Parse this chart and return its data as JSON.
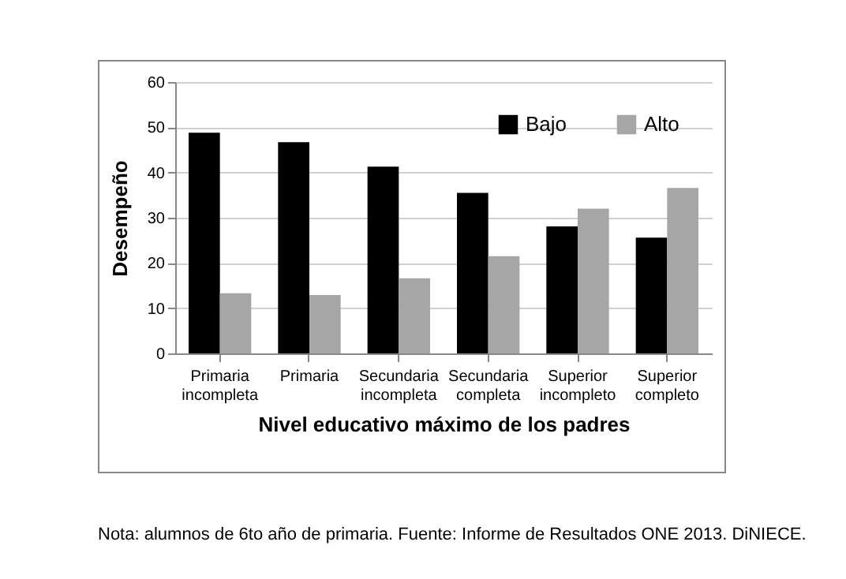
{
  "chart_data": {
    "type": "bar",
    "xlabel": "Nivel educativo  máximo de los padres",
    "ylabel": "Desempeño",
    "categories": [
      "Primaria incompleta",
      "Primaria",
      "Secundaria incompleta",
      "Secundaria completa",
      "Superior incompleto",
      "Superior completo"
    ],
    "series": [
      {
        "name": "Bajo",
        "color": "#000000",
        "values": [
          48.8,
          46.7,
          41.3,
          35.5,
          28.1,
          25.6
        ]
      },
      {
        "name": "Alto",
        "color": "#a6a6a6",
        "values": [
          13.3,
          12.9,
          16.6,
          21.5,
          32.0,
          36.6
        ]
      }
    ],
    "ylim": [
      0,
      60
    ],
    "yticks": [
      0,
      10,
      20,
      30,
      40,
      50,
      60
    ],
    "grid": "y",
    "legend": "top right",
    "annotations": [
      "Nota: alumnos de 6to año de primaria. Fuente: Informe de Resultados ONE 2013. DiNIECE."
    ]
  }
}
